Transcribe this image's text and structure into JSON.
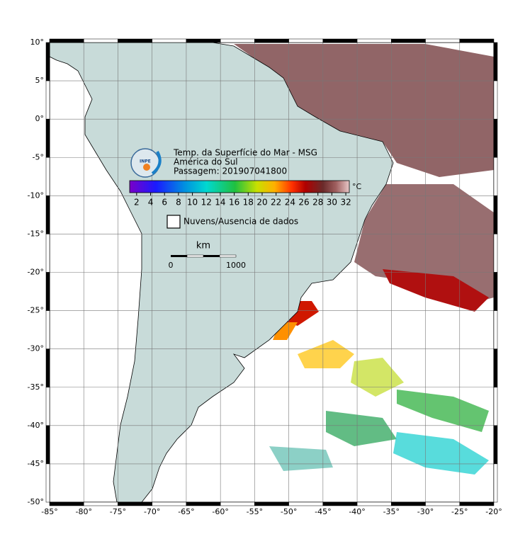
{
  "map": {
    "title": "Temp. da Superfície do Mar - MSG",
    "subtitle": "América do Sul",
    "pass": "Passagem: 201907041800",
    "logo_text": "INPE",
    "xlim": [
      -85,
      -20
    ],
    "ylim": [
      -50,
      10
    ],
    "xticks": [
      {
        "value": -85,
        "label": "-85°"
      },
      {
        "value": -80,
        "label": "-80°"
      },
      {
        "value": -75,
        "label": "-75°"
      },
      {
        "value": -70,
        "label": "-70°"
      },
      {
        "value": -65,
        "label": "-65°"
      },
      {
        "value": -60,
        "label": "-60°"
      },
      {
        "value": -55,
        "label": "-55°"
      },
      {
        "value": -50,
        "label": "-50°"
      },
      {
        "value": -45,
        "label": "-45°"
      },
      {
        "value": -40,
        "label": "-40°"
      },
      {
        "value": -35,
        "label": "-35°"
      },
      {
        "value": -30,
        "label": "-30°"
      },
      {
        "value": -25,
        "label": "-25°"
      },
      {
        "value": -20,
        "label": "-20°"
      }
    ],
    "yticks": [
      {
        "value": 10,
        "label": "10°"
      },
      {
        "value": 5,
        "label": "5°"
      },
      {
        "value": 0,
        "label": "0°"
      },
      {
        "value": -5,
        "label": "-5°"
      },
      {
        "value": -10,
        "label": "-10°"
      },
      {
        "value": -15,
        "label": "-15°"
      },
      {
        "value": -20,
        "label": "-20°"
      },
      {
        "value": -25,
        "label": "-25°"
      },
      {
        "value": -30,
        "label": "-30°"
      },
      {
        "value": -35,
        "label": "-35°"
      },
      {
        "value": -40,
        "label": "-40°"
      },
      {
        "value": -45,
        "label": "-45°"
      },
      {
        "value": -50,
        "label": "-50°"
      }
    ],
    "grid": true,
    "colorbar": {
      "lim": [
        1,
        32.5
      ],
      "ticks": [
        2,
        4,
        6,
        8,
        10,
        12,
        14,
        16,
        18,
        20,
        22,
        24,
        26,
        28,
        30,
        32
      ],
      "unit": "°C"
    },
    "legend": "Nuvens/Ausencia de dados",
    "scale_bar": {
      "unit": "km",
      "start": "0",
      "end": "1000"
    }
  }
}
